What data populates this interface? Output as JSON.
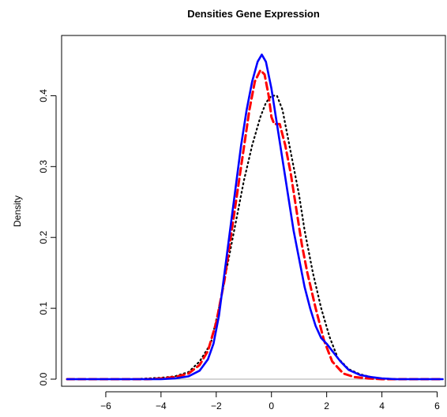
{
  "chart_data": {
    "type": "line",
    "title": "Densities Gene Expression",
    "xlabel": "",
    "ylabel": "Density",
    "xlim": [
      -7.6,
      6.3
    ],
    "ylim": [
      -0.01,
      0.485
    ],
    "x_ticks": [
      -6,
      -4,
      -2,
      0,
      2,
      4,
      6
    ],
    "y_ticks": [
      0.0,
      0.1,
      0.2,
      0.3,
      0.4
    ],
    "x_tick_labels": [
      "−6",
      "−4",
      "−2",
      "0",
      "2",
      "4",
      "6"
    ],
    "y_tick_labels": [
      "0.0",
      "0.1",
      "0.2",
      "0.3",
      "0.4"
    ],
    "grid": false,
    "baseline": 0,
    "series": [
      {
        "color": "#000000",
        "line_style": "dotted",
        "points": [
          [
            -7.4,
            0
          ],
          [
            -6,
            0
          ],
          [
            -5,
            0
          ],
          [
            -4.5,
            0.001
          ],
          [
            -4,
            0.002
          ],
          [
            -3.5,
            0.004
          ],
          [
            -3,
            0.01
          ],
          [
            -2.6,
            0.025
          ],
          [
            -2.2,
            0.05
          ],
          [
            -1.9,
            0.1
          ],
          [
            -1.6,
            0.16
          ],
          [
            -1.3,
            0.22
          ],
          [
            -1.0,
            0.28
          ],
          [
            -0.7,
            0.33
          ],
          [
            -0.4,
            0.37
          ],
          [
            -0.2,
            0.39
          ],
          [
            0.0,
            0.4
          ],
          [
            0.2,
            0.4
          ],
          [
            0.4,
            0.38
          ],
          [
            0.6,
            0.34
          ],
          [
            0.8,
            0.3
          ],
          [
            1.0,
            0.26
          ],
          [
            1.2,
            0.21
          ],
          [
            1.5,
            0.15
          ],
          [
            1.8,
            0.1
          ],
          [
            2.1,
            0.06
          ],
          [
            2.4,
            0.03
          ],
          [
            2.8,
            0.014
          ],
          [
            3.2,
            0.007
          ],
          [
            3.6,
            0.003
          ],
          [
            4.0,
            0.001
          ],
          [
            4.5,
            0
          ],
          [
            5,
            0
          ],
          [
            6.2,
            0
          ]
        ]
      },
      {
        "color": "#ff0000",
        "line_style": "dashed",
        "points": [
          [
            -7.4,
            0
          ],
          [
            -6,
            0
          ],
          [
            -5,
            0
          ],
          [
            -4.5,
            0
          ],
          [
            -4,
            0.001
          ],
          [
            -3.5,
            0.003
          ],
          [
            -3,
            0.008
          ],
          [
            -2.6,
            0.02
          ],
          [
            -2.3,
            0.04
          ],
          [
            -2.0,
            0.08
          ],
          [
            -1.7,
            0.14
          ],
          [
            -1.4,
            0.22
          ],
          [
            -1.1,
            0.3
          ],
          [
            -0.8,
            0.38
          ],
          [
            -0.6,
            0.42
          ],
          [
            -0.4,
            0.436
          ],
          [
            -0.25,
            0.43
          ],
          [
            -0.1,
            0.4
          ],
          [
            0.0,
            0.37
          ],
          [
            0.1,
            0.36
          ],
          [
            0.3,
            0.36
          ],
          [
            0.5,
            0.33
          ],
          [
            0.7,
            0.29
          ],
          [
            0.9,
            0.24
          ],
          [
            1.1,
            0.19
          ],
          [
            1.3,
            0.15
          ],
          [
            1.6,
            0.1
          ],
          [
            1.9,
            0.055
          ],
          [
            2.2,
            0.025
          ],
          [
            2.6,
            0.008
          ],
          [
            3.0,
            0.003
          ],
          [
            3.5,
            0.001
          ],
          [
            4.0,
            0
          ],
          [
            5,
            0
          ],
          [
            6.2,
            0
          ]
        ]
      },
      {
        "color": "#0000ff",
        "line_style": "solid",
        "points": [
          [
            -7.4,
            0
          ],
          [
            -6,
            0
          ],
          [
            -5,
            0
          ],
          [
            -4.5,
            0
          ],
          [
            -4,
            0
          ],
          [
            -3.5,
            0.001
          ],
          [
            -3,
            0.004
          ],
          [
            -2.6,
            0.012
          ],
          [
            -2.3,
            0.028
          ],
          [
            -2.1,
            0.05
          ],
          [
            -1.9,
            0.09
          ],
          [
            -1.7,
            0.15
          ],
          [
            -1.5,
            0.21
          ],
          [
            -1.3,
            0.27
          ],
          [
            -1.1,
            0.33
          ],
          [
            -0.9,
            0.38
          ],
          [
            -0.7,
            0.42
          ],
          [
            -0.5,
            0.448
          ],
          [
            -0.35,
            0.458
          ],
          [
            -0.2,
            0.448
          ],
          [
            0.0,
            0.41
          ],
          [
            0.2,
            0.36
          ],
          [
            0.4,
            0.31
          ],
          [
            0.6,
            0.26
          ],
          [
            0.8,
            0.21
          ],
          [
            1.0,
            0.17
          ],
          [
            1.2,
            0.13
          ],
          [
            1.4,
            0.1
          ],
          [
            1.6,
            0.075
          ],
          [
            1.8,
            0.058
          ],
          [
            2.0,
            0.05
          ],
          [
            2.2,
            0.04
          ],
          [
            2.5,
            0.025
          ],
          [
            2.8,
            0.013
          ],
          [
            3.2,
            0.006
          ],
          [
            3.6,
            0.003
          ],
          [
            4.0,
            0.001
          ],
          [
            4.5,
            0
          ],
          [
            5,
            0
          ],
          [
            6.2,
            0
          ]
        ]
      }
    ]
  }
}
